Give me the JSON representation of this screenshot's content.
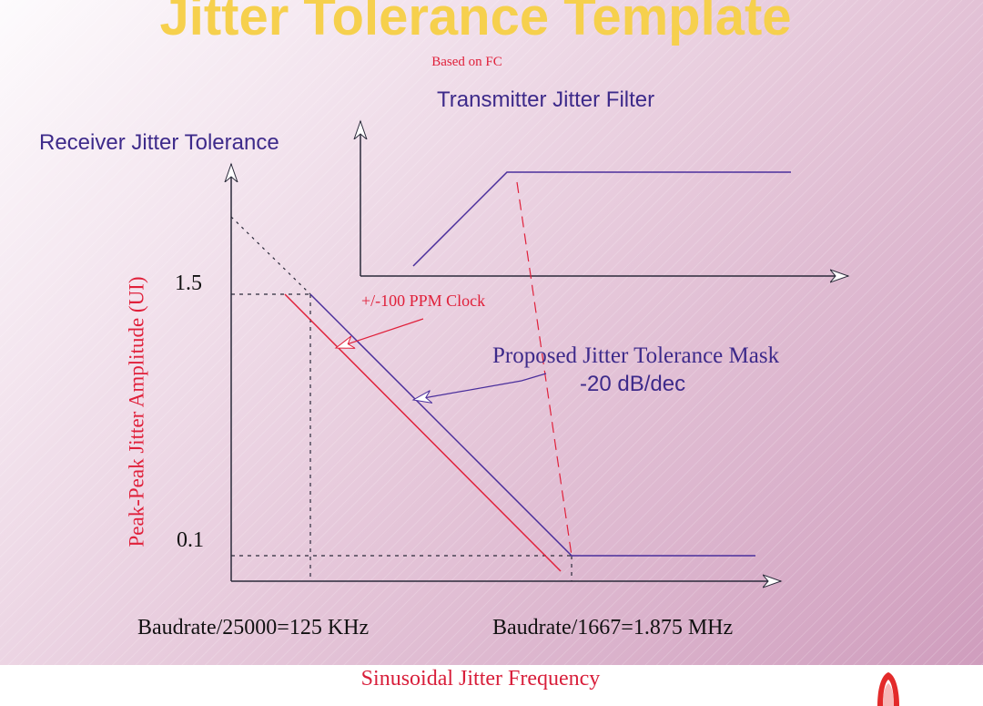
{
  "slide": {
    "title": "Jitter Tolerance Template",
    "subtitle": "Based on FC",
    "colors": {
      "title": "#f6d04d",
      "mask": "#4a2f9c",
      "clock": "#e0203a",
      "text_purple": "#3d2a8a",
      "background": "#ead0e0"
    }
  },
  "filter_diagram": {
    "title": "Transmitter Jitter Filter"
  },
  "tolerance_diagram": {
    "title": "Receiver Jitter Tolerance",
    "y_axis_label": "Peak-Peak Jitter Amplitude (UI)",
    "x_axis_label": "Sinusoidal Jitter Frequency",
    "y_ticks": [
      "1.5",
      "0.1"
    ],
    "x_ticks": [
      "Baudrate/25000=125 KHz",
      "Baudrate/1667=1.875 MHz"
    ]
  },
  "annotations": {
    "clock": "+/-100 PPM Clock",
    "mask": "Proposed Jitter Tolerance Mask",
    "slope": "-20 dB/dec"
  },
  "footer": {
    "logo_icon": "red-arch-logo-icon"
  }
}
